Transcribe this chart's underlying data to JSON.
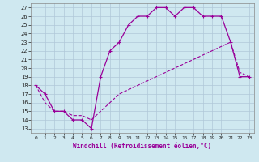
{
  "xlabel": "Windchill (Refroidissement éolien,°C)",
  "bg_color": "#cfe8f0",
  "line_color": "#990099",
  "x_hours": [
    0,
    1,
    2,
    3,
    4,
    5,
    6,
    7,
    8,
    9,
    10,
    11,
    12,
    13,
    14,
    15,
    16,
    17,
    18,
    19,
    20,
    21,
    22,
    23
  ],
  "y_actual": [
    18,
    17,
    15,
    15,
    14,
    14,
    13,
    19,
    22,
    23,
    25,
    26,
    26,
    27,
    27,
    26,
    27,
    27,
    26,
    26,
    26,
    23,
    19,
    19
  ],
  "y_smooth": [
    18,
    16,
    15,
    15,
    14.5,
    14.5,
    14,
    15,
    16,
    17,
    17.5,
    18,
    18.5,
    19,
    19.5,
    20,
    20.5,
    21,
    21.5,
    22,
    22.5,
    23,
    19.5,
    19
  ],
  "ylim": [
    12.5,
    27.5
  ],
  "yticks": [
    13,
    14,
    15,
    16,
    17,
    18,
    19,
    20,
    21,
    22,
    23,
    24,
    25,
    26,
    27
  ],
  "xlim": [
    -0.5,
    23.5
  ],
  "xticks": [
    0,
    1,
    2,
    3,
    4,
    5,
    6,
    7,
    8,
    9,
    10,
    11,
    12,
    13,
    14,
    15,
    16,
    17,
    18,
    19,
    20,
    21,
    22,
    23
  ],
  "grid_color": "#b0c8d8",
  "figsize": [
    3.2,
    2.0
  ],
  "dpi": 100
}
